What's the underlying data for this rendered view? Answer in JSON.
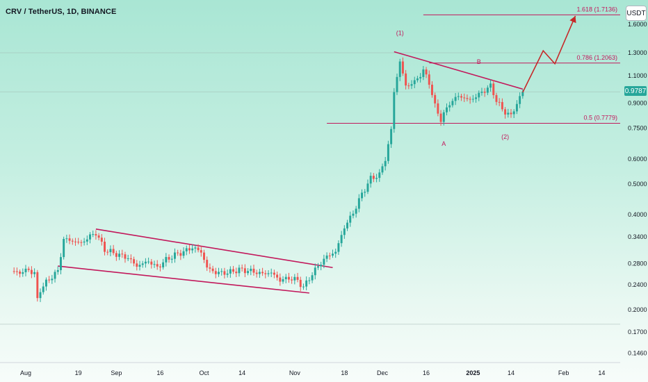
{
  "header": {
    "title": "CRV / TetherUS, 1D, BINANCE",
    "unit": "USDT"
  },
  "chart_data": {
    "type": "candlestick",
    "symbol": "CRV / TetherUS",
    "interval": "1D",
    "exchange": "BINANCE",
    "current_price": "0.9787",
    "y_scale": "log",
    "y_tick_labels": [
      "1.6000",
      "1.3000",
      "1.1000",
      "0.9000",
      "0.7500",
      "0.6000",
      "0.5000",
      "0.4000",
      "0.3400",
      "0.2800",
      "0.2400",
      "0.2000",
      "0.1700",
      "0.1460"
    ],
    "x_tick_labels": [
      {
        "label": "Aug",
        "date": "2024-08-01"
      },
      {
        "label": "19",
        "date": "2024-08-19"
      },
      {
        "label": "Sep",
        "date": "2024-09-01"
      },
      {
        "label": "16",
        "date": "2024-09-16"
      },
      {
        "label": "Oct",
        "date": "2024-10-01"
      },
      {
        "label": "14",
        "date": "2024-10-14"
      },
      {
        "label": "Nov",
        "date": "2024-11-01"
      },
      {
        "label": "18",
        "date": "2024-11-18"
      },
      {
        "label": "Dec",
        "date": "2024-12-01"
      },
      {
        "label": "16",
        "date": "2024-12-16"
      },
      {
        "label": "2025",
        "date": "2025-01-01"
      },
      {
        "label": "14",
        "date": "2025-01-14"
      },
      {
        "label": "Feb",
        "date": "2025-02-01"
      },
      {
        "label": "14",
        "date": "2025-02-14"
      }
    ],
    "close_series": [
      [
        "2024-07-27",
        0.265
      ],
      [
        "2024-07-30",
        0.262
      ],
      [
        "2024-08-02",
        0.268
      ],
      [
        "2024-08-04",
        0.26
      ],
      [
        "2024-08-05",
        0.215
      ],
      [
        "2024-08-06",
        0.232
      ],
      [
        "2024-08-09",
        0.25
      ],
      [
        "2024-08-12",
        0.265
      ],
      [
        "2024-08-14",
        0.335
      ],
      [
        "2024-08-17",
        0.33
      ],
      [
        "2024-08-20",
        0.325
      ],
      [
        "2024-08-23",
        0.342
      ],
      [
        "2024-08-25",
        0.35
      ],
      [
        "2024-08-28",
        0.31
      ],
      [
        "2024-09-01",
        0.3
      ],
      [
        "2024-09-05",
        0.292
      ],
      [
        "2024-09-08",
        0.275
      ],
      [
        "2024-09-12",
        0.285
      ],
      [
        "2024-09-15",
        0.272
      ],
      [
        "2024-09-18",
        0.288
      ],
      [
        "2024-09-21",
        0.298
      ],
      [
        "2024-09-24",
        0.305
      ],
      [
        "2024-09-27",
        0.315
      ],
      [
        "2024-09-30",
        0.305
      ],
      [
        "2024-10-02",
        0.272
      ],
      [
        "2024-10-05",
        0.262
      ],
      [
        "2024-10-09",
        0.262
      ],
      [
        "2024-10-13",
        0.268
      ],
      [
        "2024-10-17",
        0.265
      ],
      [
        "2024-10-21",
        0.26
      ],
      [
        "2024-10-24",
        0.262
      ],
      [
        "2024-10-27",
        0.248
      ],
      [
        "2024-10-30",
        0.252
      ],
      [
        "2024-11-02",
        0.248
      ],
      [
        "2024-11-04",
        0.235
      ],
      [
        "2024-11-06",
        0.252
      ],
      [
        "2024-11-09",
        0.275
      ],
      [
        "2024-11-12",
        0.295
      ],
      [
        "2024-11-15",
        0.305
      ],
      [
        "2024-11-18",
        0.365
      ],
      [
        "2024-11-21",
        0.405
      ],
      [
        "2024-11-24",
        0.465
      ],
      [
        "2024-11-27",
        0.52
      ],
      [
        "2024-11-30",
        0.535
      ],
      [
        "2024-12-02",
        0.6
      ],
      [
        "2024-12-04",
        0.74
      ],
      [
        "2024-12-05",
        0.98
      ],
      [
        "2024-12-07",
        1.22
      ],
      [
        "2024-12-09",
        1.02
      ],
      [
        "2024-12-12",
        1.05
      ],
      [
        "2024-12-15",
        1.14
      ],
      [
        "2024-12-17",
        1.05
      ],
      [
        "2024-12-19",
        0.88
      ],
      [
        "2024-12-21",
        0.8
      ],
      [
        "2024-12-24",
        0.9
      ],
      [
        "2024-12-27",
        0.95
      ],
      [
        "2024-12-31",
        0.92
      ],
      [
        "2025-01-03",
        0.96
      ],
      [
        "2025-01-07",
        1.02
      ],
      [
        "2025-01-09",
        0.92
      ],
      [
        "2025-01-11",
        0.86
      ],
      [
        "2025-01-14",
        0.82
      ],
      [
        "2025-01-16",
        0.9
      ],
      [
        "2025-01-18",
        0.9787
      ]
    ],
    "fib_levels": [
      {
        "label": "1.618 (1.7136)",
        "value": 1.7136
      },
      {
        "label": "0.786 (1.2063)",
        "value": 1.2063
      },
      {
        "label": "0.5 (0.7779)",
        "value": 0.7779
      }
    ],
    "wave_labels": [
      "(1)",
      "A",
      "B",
      "(2)"
    ],
    "colors": {
      "up": "#26a69a",
      "down": "#ef5350",
      "annotation": "#c2185b",
      "projection": "#c62828"
    }
  }
}
